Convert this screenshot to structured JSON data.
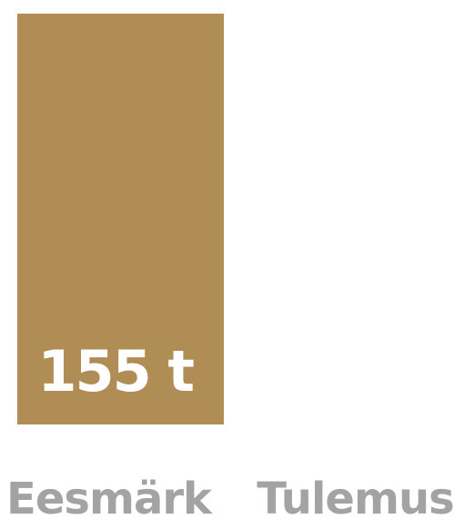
{
  "chart_data": {
    "type": "bar",
    "categories": [
      "Eesmärk",
      "Tulemus"
    ],
    "series": [
      {
        "values": [
          155,
          null
        ],
        "value_labels": [
          "155 t",
          ""
        ]
      }
    ],
    "bar_color": "#b08d55",
    "label_color": "#a3a3a3",
    "value_label_color": "#ffffff",
    "ylim": [
      0,
      155
    ],
    "grid": false
  }
}
